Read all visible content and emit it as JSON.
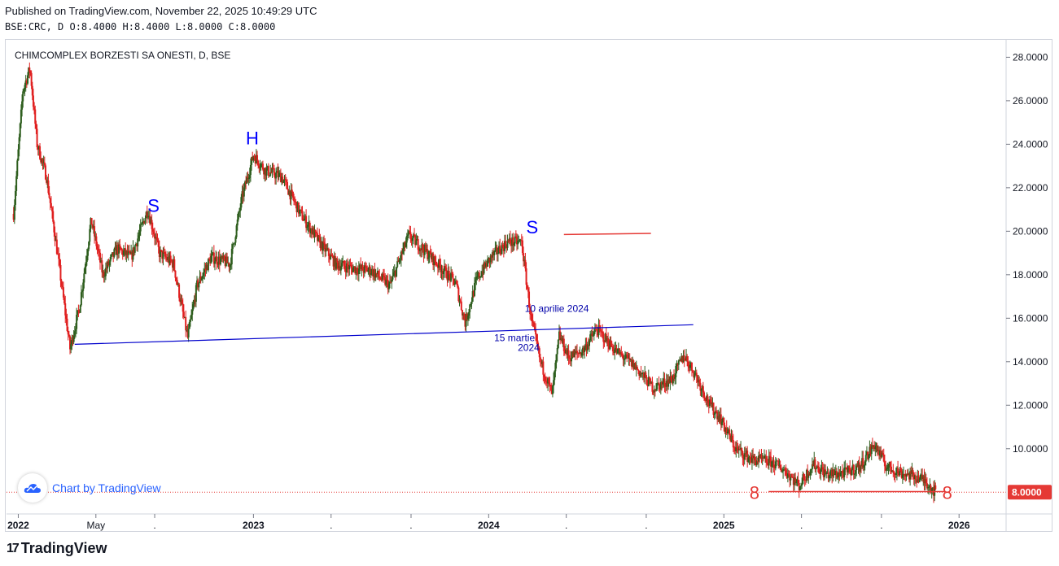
{
  "header": {
    "published": "Published on TradingView.com, November 22, 2025 10:49:29 UTC",
    "ohlc": "BSE:CRC, D  O:8.4000 H:8.4000 L:8.0000 C:8.0000"
  },
  "footer": {
    "brand": "TradingView",
    "logo": "17"
  },
  "watermark": {
    "text": "Chart by TradingView",
    "icon": "cloud-icon"
  },
  "colors": {
    "up": "#2e5e1e",
    "down": "#e02020",
    "trendline": "#0000cc",
    "red": "#e53935",
    "label_blue": "#0000ff"
  },
  "chart_data": {
    "type": "candlestick",
    "title": "CHIMCOMPLEX BORZESTI SA ONESTI, D, BSE",
    "xlabel": "",
    "ylabel": "",
    "ylim": [
      7,
      28.8
    ],
    "x_ticks": [
      {
        "label": "2022",
        "t": 2022.0,
        "bold": true
      },
      {
        "label": "May",
        "t": 2022.33,
        "bold": false
      },
      {
        "label": ".",
        "t": 2022.58,
        "bold": false
      },
      {
        "label": "2023",
        "t": 2023.0,
        "bold": true
      },
      {
        "label": ".",
        "t": 2023.33,
        "bold": false
      },
      {
        "label": ".",
        "t": 2023.67,
        "bold": false
      },
      {
        "label": "2024",
        "t": 2024.0,
        "bold": true
      },
      {
        "label": ".",
        "t": 2024.33,
        "bold": false
      },
      {
        "label": ".",
        "t": 2024.67,
        "bold": false
      },
      {
        "label": "2025",
        "t": 2025.0,
        "bold": true
      },
      {
        "label": ".",
        "t": 2025.33,
        "bold": false
      },
      {
        "label": ".",
        "t": 2025.67,
        "bold": false
      },
      {
        "label": "2026",
        "t": 2026.0,
        "bold": true
      }
    ],
    "y_ticks": [
      "28.0000",
      "26.0000",
      "24.0000",
      "22.0000",
      "20.0000",
      "18.0000",
      "16.0000",
      "14.0000",
      "12.0000",
      "10.0000"
    ],
    "last_price": "8.0000",
    "price_path": [
      [
        2021.98,
        20.8
      ],
      [
        2022.02,
        26.5
      ],
      [
        2022.05,
        27.5
      ],
      [
        2022.08,
        24.0
      ],
      [
        2022.12,
        22.5
      ],
      [
        2022.16,
        19.5
      ],
      [
        2022.22,
        14.6
      ],
      [
        2022.26,
        16.5
      ],
      [
        2022.31,
        20.5
      ],
      [
        2022.36,
        18.0
      ],
      [
        2022.42,
        19.2
      ],
      [
        2022.48,
        18.8
      ],
      [
        2022.55,
        21.0
      ],
      [
        2022.6,
        19.0
      ],
      [
        2022.66,
        18.5
      ],
      [
        2022.72,
        15.1
      ],
      [
        2022.76,
        17.5
      ],
      [
        2022.82,
        18.8
      ],
      [
        2022.9,
        18.5
      ],
      [
        2022.95,
        21.5
      ],
      [
        2023.0,
        23.5
      ],
      [
        2023.05,
        22.8
      ],
      [
        2023.12,
        22.5
      ],
      [
        2023.2,
        20.8
      ],
      [
        2023.28,
        19.5
      ],
      [
        2023.35,
        18.5
      ],
      [
        2023.42,
        18.3
      ],
      [
        2023.5,
        18.2
      ],
      [
        2023.58,
        17.5
      ],
      [
        2023.66,
        19.8
      ],
      [
        2023.72,
        19.2
      ],
      [
        2023.8,
        18.3
      ],
      [
        2023.86,
        17.6
      ],
      [
        2023.9,
        15.8
      ],
      [
        2023.95,
        17.8
      ],
      [
        2024.01,
        18.8
      ],
      [
        2024.08,
        19.5
      ],
      [
        2024.14,
        19.5
      ],
      [
        2024.18,
        16.0
      ],
      [
        2024.22,
        14.0
      ],
      [
        2024.27,
        12.5
      ],
      [
        2024.3,
        15.2
      ],
      [
        2024.34,
        14.2
      ],
      [
        2024.4,
        14.5
      ],
      [
        2024.46,
        15.5
      ],
      [
        2024.54,
        14.5
      ],
      [
        2024.62,
        13.8
      ],
      [
        2024.7,
        12.8
      ],
      [
        2024.78,
        13.2
      ],
      [
        2024.83,
        14.3
      ],
      [
        2024.88,
        13.4
      ],
      [
        2024.94,
        12.0
      ],
      [
        2024.98,
        11.5
      ],
      [
        2025.05,
        10.0
      ],
      [
        2025.12,
        9.5
      ],
      [
        2025.2,
        9.4
      ],
      [
        2025.26,
        9.0
      ],
      [
        2025.32,
        8.3
      ],
      [
        2025.38,
        9.3
      ],
      [
        2025.44,
        8.8
      ],
      [
        2025.52,
        8.9
      ],
      [
        2025.58,
        9.2
      ],
      [
        2025.64,
        10.2
      ],
      [
        2025.69,
        9.2
      ],
      [
        2025.75,
        8.9
      ],
      [
        2025.82,
        8.7
      ],
      [
        2025.86,
        8.5
      ],
      [
        2025.9,
        8.0
      ]
    ],
    "annotations": [
      {
        "text": "S",
        "t": 2022.575,
        "v": 20.9,
        "kind": "pattern"
      },
      {
        "text": "H",
        "t": 2022.995,
        "v": 24.0,
        "kind": "pattern"
      },
      {
        "text": "S",
        "t": 2024.185,
        "v": 19.9,
        "kind": "pattern"
      },
      {
        "text": "10 aprilie 2024",
        "t": 2024.29,
        "v": 16.3,
        "kind": "note"
      },
      {
        "text": "15 martie",
        "t": 2024.11,
        "v": 14.95,
        "kind": "note"
      },
      {
        "text": "2024",
        "t": 2024.17,
        "v": 14.5,
        "kind": "note"
      },
      {
        "text": "8",
        "t": 2025.13,
        "v": 8.0,
        "kind": "level"
      },
      {
        "text": "8",
        "t": 2025.95,
        "v": 8.0,
        "kind": "level"
      }
    ],
    "trendline": {
      "t1": 2022.24,
      "v1": 14.8,
      "t2": 2024.87,
      "v2": 15.7
    },
    "red_segment": {
      "t1": 2024.32,
      "v1": 19.85,
      "t2": 2024.69,
      "v2": 19.9
    },
    "support_segment": {
      "t1": 2025.19,
      "v1": 8.03,
      "t2": 2025.94,
      "v2": 8.03
    }
  }
}
